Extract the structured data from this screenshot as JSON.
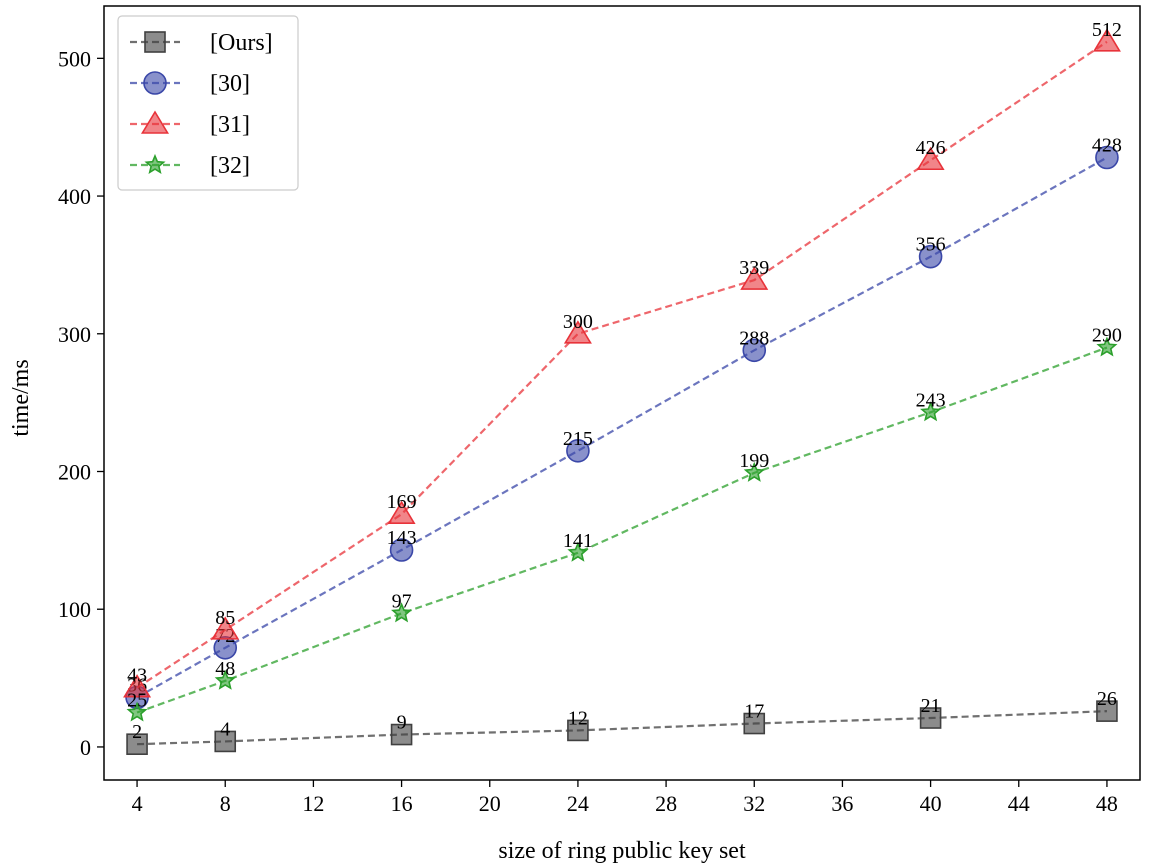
{
  "chart_data": {
    "type": "line",
    "title": "",
    "xlabel": "size of ring public key set",
    "ylabel": "time/ms",
    "x": [
      4,
      8,
      16,
      24,
      32,
      40,
      48
    ],
    "xticks": [
      4,
      8,
      12,
      16,
      20,
      24,
      28,
      32,
      36,
      40,
      44,
      48
    ],
    "yticks": [
      0,
      100,
      200,
      300,
      400,
      500
    ],
    "xlim": [
      2.5,
      49.5
    ],
    "ylim": [
      -24,
      538
    ],
    "grid": false,
    "legend_position": "top-left",
    "series": [
      {
        "name": "[Ours]",
        "marker": "square",
        "color": "#404040",
        "values": [
          2,
          4,
          9,
          12,
          17,
          21,
          26
        ]
      },
      {
        "name": "[30]",
        "marker": "circle",
        "color": "#3a47a8",
        "values": [
          36,
          72,
          143,
          215,
          288,
          356,
          428
        ]
      },
      {
        "name": "[31]",
        "marker": "triangle",
        "color": "#e8333a",
        "values": [
          43,
          85,
          169,
          300,
          339,
          426,
          512
        ]
      },
      {
        "name": "[32]",
        "marker": "star",
        "color": "#2ca02c",
        "values": [
          25,
          48,
          97,
          141,
          199,
          243,
          290
        ]
      }
    ]
  }
}
